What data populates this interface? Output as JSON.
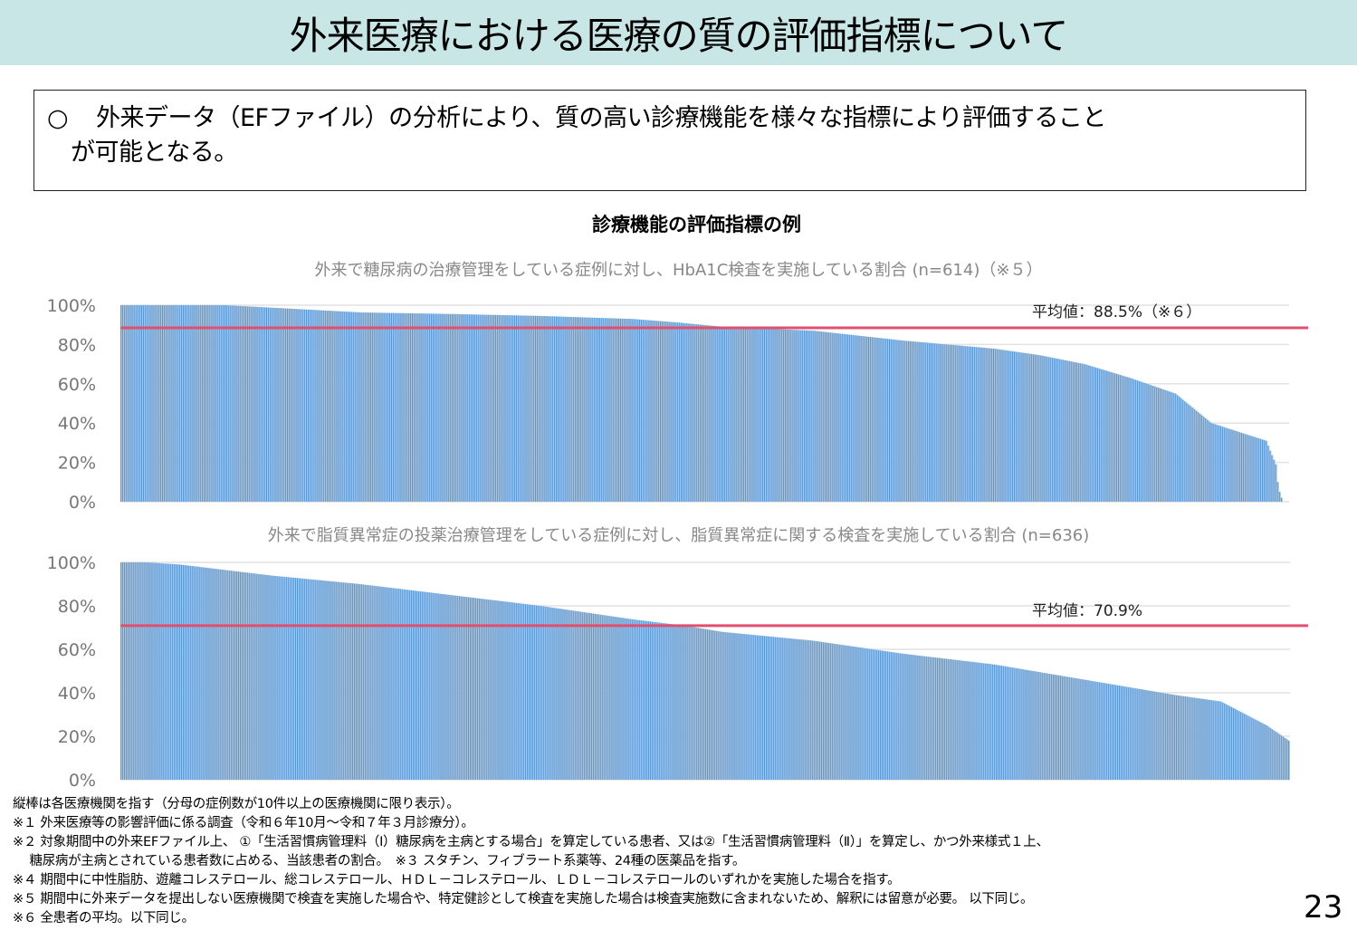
{
  "header": {
    "title": "外来医療における医療の質の評価指標について"
  },
  "summary": {
    "bullet": "○",
    "text": "外来データ（EFファイル）の分析により、質の高い診療機能を様々な指標により評価すること",
    "text2": "が可能となる。"
  },
  "section_title": "診療機能の評価指標の例",
  "colors": {
    "band": "#c9e6e6",
    "bar": "#a8c8e8",
    "bar_edge": "#3a7fc4",
    "mean_line": "#e0506e",
    "grid": "#e2e2e2"
  },
  "chart_data": [
    {
      "type": "bar",
      "title": "外来で糖尿病の治療管理をしている症例に対し、HbA1C検査を実施している割合 (n=614)（※５）",
      "n": 614,
      "ylim": [
        0,
        100
      ],
      "yticks": [
        "0%",
        "20%",
        "40%",
        "60%",
        "80%",
        "100%"
      ],
      "grid": true,
      "sorted": "descending",
      "value_by_rank": [
        [
          1,
          100
        ],
        [
          56,
          100
        ],
        [
          128,
          96.3
        ],
        [
          176,
          95.5
        ],
        [
          223,
          94.5
        ],
        [
          271,
          93
        ],
        [
          295,
          91.2
        ],
        [
          319,
          89
        ],
        [
          367,
          87
        ],
        [
          414,
          82
        ],
        [
          462,
          77.9
        ],
        [
          486,
          74.6
        ],
        [
          510,
          70
        ],
        [
          534,
          63
        ],
        [
          558,
          55
        ],
        [
          577,
          40
        ],
        [
          606,
          31
        ],
        [
          608,
          26
        ],
        [
          611,
          19
        ],
        [
          612,
          10
        ],
        [
          613,
          5
        ],
        [
          614,
          2
        ]
      ],
      "mean": {
        "value": 88.5,
        "label": "平均値：88.5%（※６）"
      }
    },
    {
      "type": "bar",
      "title": "外来で脂質異常症の投薬治療管理をしている症例に対し、脂質異常症に関する検査を実施している割合 (n=636)",
      "n": 636,
      "ylim": [
        0,
        100
      ],
      "yticks": [
        "0%",
        "20%",
        "40%",
        "60%",
        "80%",
        "100%"
      ],
      "grid": true,
      "sorted": "descending",
      "value_by_rank": [
        [
          1,
          100
        ],
        [
          15,
          100
        ],
        [
          33,
          99
        ],
        [
          82,
          94
        ],
        [
          131,
          90
        ],
        [
          180,
          85
        ],
        [
          229,
          80
        ],
        [
          279,
          73.8
        ],
        [
          308,
          70.8
        ],
        [
          328,
          68
        ],
        [
          377,
          64
        ],
        [
          426,
          58
        ],
        [
          476,
          53
        ],
        [
          525,
          46
        ],
        [
          574,
          39
        ],
        [
          599,
          36
        ],
        [
          624,
          25
        ],
        [
          636,
          18
        ]
      ],
      "mean": {
        "value": 70.9,
        "label": "平均値：70.9%"
      }
    }
  ],
  "notes": [
    "縦棒は各医療機関を指す（分母の症例数が10件以上の医療機関に限り表示）。",
    "※１ 外来医療等の影響評価に係る調査（令和６年10月～令和７年３月診療分）。",
    "※２ 対象期間中の外来EFファイル上、 ①「生活習慣病管理料（Ⅰ）糖尿病を主病とする場合」を算定している患者、又は②「生活習慣病管理料（Ⅱ）」を算定し、かつ外来様式１上、",
    "　 糖尿病が主病とされている患者数に占める、当該患者の割合。　※３ スタチン、フィブラート系薬等、24種の医薬品を指す。",
    "※４ 期間中に中性脂肪、遊離コレステロール、総コレステロール、ＨＤＬ－コレステロール、ＬＤＬ－コレステロールのいずれかを実施した場合を指す。",
    "※５ 期間中に外来データを提出しない医療機関で検査を実施した場合や、特定健診として検査を実施した場合は検査実施数に含まれないため、解釈には留意が必要。 以下同じ。",
    "※６ 全患者の平均。以下同じ。"
  ],
  "page_number": "23"
}
